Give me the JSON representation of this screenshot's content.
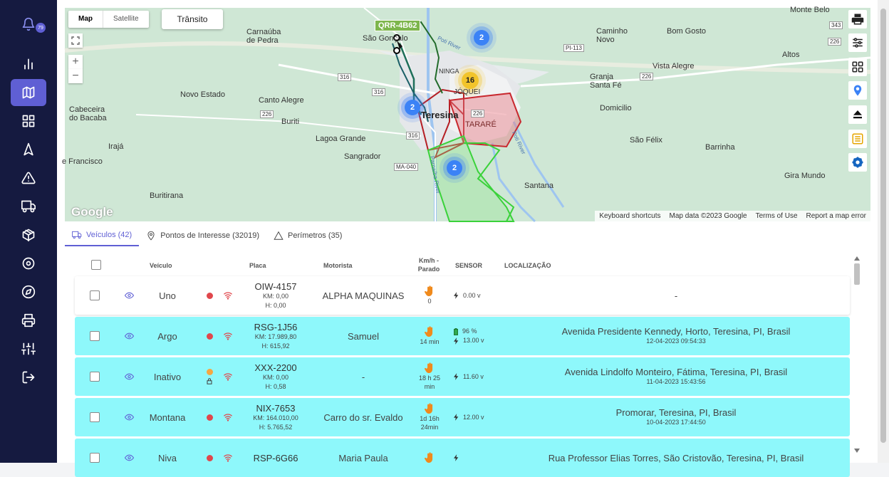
{
  "notifications": {
    "count": "79"
  },
  "nav": [
    {
      "name": "notifications-icon"
    },
    {
      "name": "chart-icon"
    },
    {
      "name": "map-icon",
      "active": true
    },
    {
      "name": "grid-icon"
    },
    {
      "name": "navigation-icon"
    },
    {
      "name": "alert-icon"
    },
    {
      "name": "truck-icon"
    },
    {
      "name": "package-icon"
    },
    {
      "name": "target-icon"
    },
    {
      "name": "compass-icon"
    },
    {
      "name": "printer-icon"
    },
    {
      "name": "settings-sliders-icon"
    },
    {
      "name": "logout-icon"
    }
  ],
  "map": {
    "type_map": "Map",
    "type_satellite": "Satellite",
    "transit": "Trânsito",
    "zoom_in": "+",
    "zoom_out": "−",
    "vehicle_tag": "QRR-4B62",
    "clusters": {
      "c1": "2",
      "c2": "16",
      "c3": "2",
      "c4": "2"
    },
    "cities": {
      "carnauba": "Carnaúba\nde Pedra",
      "sao_goncalo": "São Gonçalo",
      "caminho_novo": "Caminho\nNovo",
      "bom_gosto": "Bom Gosto",
      "monte_belo": "Monte Belo",
      "altos": "Altos",
      "granja": "Granja\nSanta Fé",
      "vista_alegre": "Vista Alegre",
      "novo_estado": "Novo Estado",
      "canto_alegre": "Canto Alegre",
      "cabeceira": "Cabeceira\ndo Bacaba",
      "buriti": "Buriti",
      "lagoa_grande": "Lagoa Grande",
      "teresina": "Teresina",
      "jockey": "JÓQUEI",
      "ninga": "NINGA",
      "tarare": "TARARÉ",
      "domicilio": "Domicilio",
      "sao_felix": "São Félix",
      "barrinha": "Barrinha",
      "iraja": "Irajá",
      "francisco": "e Francisco",
      "sangrador": "Sangrador",
      "gira_mundo": "Gira Mundo",
      "buritirana": "Buritirana",
      "santana": "Santana",
      "poti_river": "Poti River",
      "parnaiba_river": "Parnaíba River",
      "poti_river2": "Poti River"
    },
    "roads": {
      "r316a": "316",
      "r316b": "316",
      "r316c": "316",
      "r226a": "226",
      "r226b": "226",
      "r226c": "226",
      "r226d": "226",
      "r343": "343",
      "pi113": "PI-113",
      "ma040": "MA-040"
    },
    "google": "Google",
    "attribution": {
      "shortcuts": "Keyboard shortcuts",
      "data": "Map data ©2023 Google",
      "terms": "Terms of Use",
      "report": "Report a map error"
    }
  },
  "tabs": [
    {
      "label": "Veículos (42)",
      "active": true
    },
    {
      "label": "Pontos de Interesse (32019)"
    },
    {
      "label": "Perímetros (35)"
    }
  ],
  "table": {
    "headers": {
      "vehicle": "Veículo",
      "plate": "Placa",
      "driver": "Motorista",
      "speed": "Km/h -\nParado",
      "sensor": "SENSOR",
      "location": "LOCALIZAÇÃO"
    },
    "rows": [
      {
        "name": "Uno",
        "plate": "OIW-4157",
        "km": "KM: 0,00",
        "h": "H: 0,00",
        "driver": "ALPHA MAQUINAS",
        "stopped": "0",
        "battery": "",
        "voltage": "0.00 v",
        "location": "-",
        "date": "",
        "status_color": "#e0474c",
        "style": "white"
      },
      {
        "name": "Argo",
        "plate": "RSG-1J56",
        "km": "KM: 17.989,80",
        "h": "H: 615,92",
        "driver": "Samuel",
        "stopped": "14 min",
        "battery": "96 %",
        "voltage": "13.00 v",
        "location": "Avenida Presidente Kennedy, Horto, Teresina, PI, Brasil",
        "date": "12-04-2023 09:54:33",
        "status_color": "#e0474c",
        "style": "cyan"
      },
      {
        "name": "Inativo",
        "plate": "XXX-2200",
        "km": "KM: 0,00",
        "h": "H: 0,58",
        "driver": "-",
        "stopped": "18 h 25\nmin",
        "battery": "",
        "voltage": "11.60 v",
        "location": "Avenida Lindolfo Monteiro, Fátima, Teresina, PI, Brasil",
        "date": "11-04-2023 15:43:56",
        "status_color": "#f5a742",
        "style": "cyan"
      },
      {
        "name": "Montana",
        "plate": "NIX-7653",
        "km": "KM: 164.010,00",
        "h": "H: 5.765,52",
        "driver": "Carro do sr. Evaldo",
        "stopped": "1d 16h\n24min",
        "battery": "",
        "voltage": "12.00 v",
        "location": "Promorar, Teresina, PI, Brasil",
        "date": "10-04-2023 17:44:50",
        "status_color": "#e0474c",
        "style": "cyan"
      },
      {
        "name": "Niva",
        "plate": "RSP-6G66",
        "km": "",
        "h": "",
        "driver": "Maria Paula",
        "stopped": "",
        "battery": "",
        "voltage": "",
        "location": "Rua Professor Elias Torres, São Cristovão, Teresina, PI, Brasil",
        "date": "",
        "status_color": "#e0474c",
        "style": "cyan"
      }
    ]
  }
}
